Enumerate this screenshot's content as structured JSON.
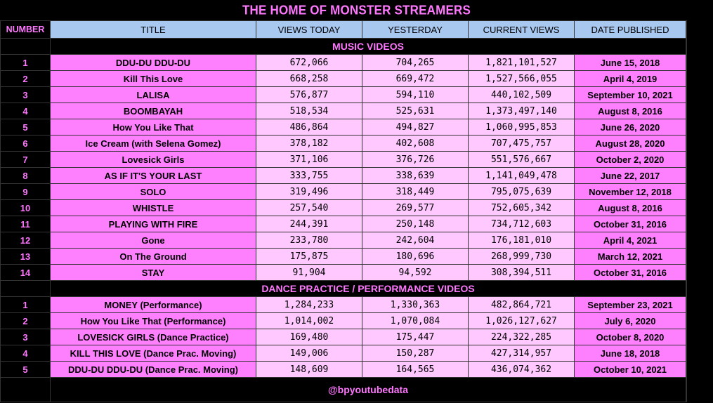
{
  "title": "THE HOME OF MONSTER STREAMERS",
  "headers": {
    "number": "NUMBER",
    "title": "TITLE",
    "views_today": "VIEWS TODAY",
    "yesterday": "YESTERDAY",
    "current_views": "CURRENT VIEWS",
    "date_published": "DATE PUBLISHED"
  },
  "sections": [
    {
      "name": "MUSIC VIDEOS",
      "rows": [
        {
          "num": "1",
          "title": "DDU-DU DDU-DU",
          "today": "672,066",
          "yesterday": "704,265",
          "current": "1,821,101,527",
          "date": "June 15, 2018"
        },
        {
          "num": "2",
          "title": "Kill This Love",
          "today": "668,258",
          "yesterday": "669,472",
          "current": "1,527,566,055",
          "date": "April 4, 2019"
        },
        {
          "num": "3",
          "title": "LALISA",
          "today": "576,877",
          "yesterday": "594,110",
          "current": "440,102,509",
          "date": "September 10, 2021"
        },
        {
          "num": "4",
          "title": "BOOMBAYAH",
          "today": "518,534",
          "yesterday": "525,631",
          "current": "1,373,497,140",
          "date": "August 8, 2016"
        },
        {
          "num": "5",
          "title": "How You Like That",
          "today": "486,864",
          "yesterday": "494,827",
          "current": "1,060,995,853",
          "date": "June 26, 2020"
        },
        {
          "num": "6",
          "title": "Ice Cream (with Selena Gomez)",
          "today": "378,182",
          "yesterday": "402,608",
          "current": "707,475,757",
          "date": "August 28, 2020"
        },
        {
          "num": "7",
          "title": "Lovesick Girls",
          "today": "371,106",
          "yesterday": "376,726",
          "current": "551,576,667",
          "date": "October 2, 2020"
        },
        {
          "num": "8",
          "title": "AS IF IT'S YOUR LAST",
          "today": "333,755",
          "yesterday": "338,639",
          "current": "1,141,049,478",
          "date": "June 22, 2017"
        },
        {
          "num": "9",
          "title": "SOLO",
          "today": "319,496",
          "yesterday": "318,449",
          "current": "795,075,639",
          "date": "November 12, 2018"
        },
        {
          "num": "10",
          "title": "WHISTLE",
          "today": "257,540",
          "yesterday": "269,577",
          "current": "752,605,342",
          "date": "August 8, 2016"
        },
        {
          "num": "11",
          "title": "PLAYING WITH FIRE",
          "today": "244,391",
          "yesterday": "250,148",
          "current": "734,712,603",
          "date": "October 31, 2016"
        },
        {
          "num": "12",
          "title": "Gone",
          "today": "233,780",
          "yesterday": "242,604",
          "current": "176,181,010",
          "date": "April 4, 2021"
        },
        {
          "num": "13",
          "title": "On The Ground",
          "today": "175,875",
          "yesterday": "180,696",
          "current": "268,999,730",
          "date": "March 12, 2021"
        },
        {
          "num": "14",
          "title": "STAY",
          "today": "91,904",
          "yesterday": "94,592",
          "current": "308,394,511",
          "date": "October 31, 2016"
        }
      ]
    },
    {
      "name": "DANCE PRACTICE / PERFORMANCE VIDEOS",
      "rows": [
        {
          "num": "1",
          "title": "MONEY (Performance)",
          "today": "1,284,233",
          "yesterday": "1,330,363",
          "current": "482,864,721",
          "date": "September 23, 2021"
        },
        {
          "num": "2",
          "title": "How You Like That (Performance)",
          "today": "1,014,002",
          "yesterday": "1,070,084",
          "current": "1,026,127,627",
          "date": "July 6, 2020"
        },
        {
          "num": "3",
          "title": "LOVESICK GIRLS (Dance Practice)",
          "today": "169,480",
          "yesterday": "175,447",
          "current": "224,322,285",
          "date": "October 8, 2020"
        },
        {
          "num": "4",
          "title": "KILL THIS LOVE (Dance Prac. Moving)",
          "today": "149,006",
          "yesterday": "150,287",
          "current": "427,314,957",
          "date": "June 18, 2018"
        },
        {
          "num": "5",
          "title": "DDU-DU DDU-DU (Dance Prac. Moving)",
          "today": "148,609",
          "yesterday": "164,565",
          "current": "436,074,362",
          "date": "October 10, 2021"
        }
      ]
    }
  ],
  "footer": "@bpyoutubedata",
  "colors": {
    "background": "#000000",
    "accent_pink": "#ff77ff",
    "title_cell": "#ff80ff",
    "value_cell": "#ffc8ff",
    "header": "#a8c8f0"
  }
}
